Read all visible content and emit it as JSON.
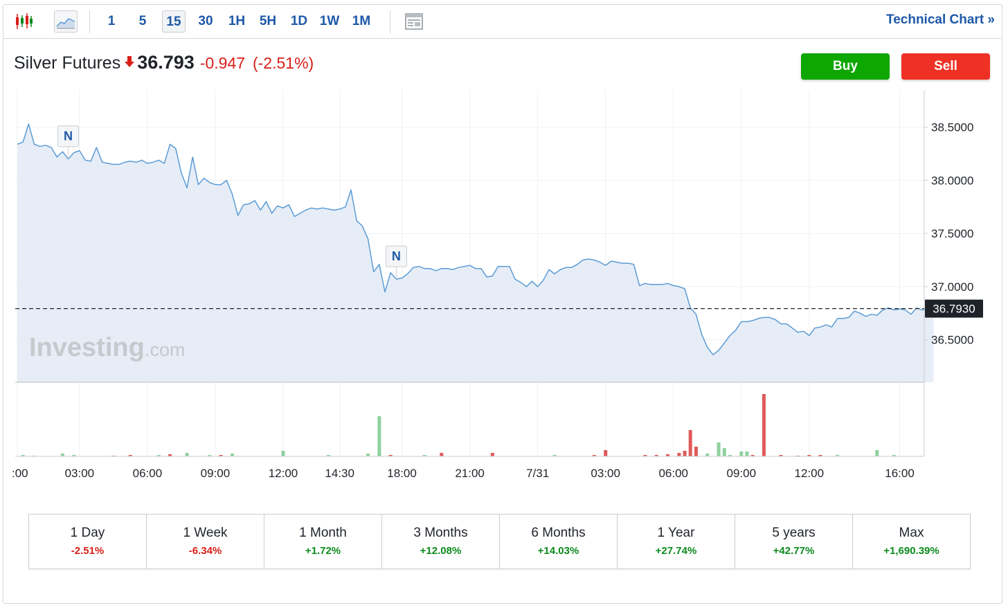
{
  "toolbar": {
    "timeframes": [
      "1",
      "5",
      "15",
      "30",
      "1H",
      "5H",
      "1D",
      "1W",
      "1M"
    ],
    "active_timeframe": "15",
    "technical_chart_label": "Technical Chart »"
  },
  "header": {
    "instrument": "Silver Futures",
    "price": "36.793",
    "change": "-0.947",
    "change_pct": "(-2.51%)",
    "direction_icon": "arrow-down-icon"
  },
  "actions": {
    "buy_label": "Buy",
    "sell_label": "Sell"
  },
  "watermark": {
    "brand": "Investing",
    "suffix": ".com"
  },
  "periods": [
    {
      "label": "1 Day",
      "value": "-2.51%"
    },
    {
      "label": "1 Week",
      "value": "-6.34%"
    },
    {
      "label": "1 Month",
      "value": "+1.72%"
    },
    {
      "label": "3 Months",
      "value": "+12.08%"
    },
    {
      "label": "6 Months",
      "value": "+14.03%"
    },
    {
      "label": "1 Year",
      "value": "+27.74%"
    },
    {
      "label": "5 years",
      "value": "+42.77%"
    },
    {
      "label": "Max",
      "value": "+1,690.39%"
    }
  ],
  "colors": {
    "line": "#5b9bd5",
    "area": "#e6edf6",
    "volume_up": "#8fd19e",
    "volume_down": "#e05a5a",
    "positive": "#0b8a1d",
    "negative": "#d91e18",
    "buy": "#0ea600",
    "sell": "#ee3124"
  },
  "chart_data": {
    "type": "area",
    "grid": true,
    "xlabel": "",
    "ylabel": "",
    "ylim": [
      36.1,
      38.85
    ],
    "yticks": [
      "38.5000",
      "38.0000",
      "37.5000",
      "37.0000",
      "36.5000"
    ],
    "ytick_values": [
      38.5,
      38.0,
      37.5,
      37.0,
      36.5
    ],
    "current_price_label": "36.7930",
    "current_price": 36.793,
    "xticks": [
      {
        "label": ":00",
        "i": 0
      },
      {
        "label": "03:00",
        "i": 11
      },
      {
        "label": "06:00",
        "i": 23
      },
      {
        "label": "09:00",
        "i": 35
      },
      {
        "label": "12:00",
        "i": 47
      },
      {
        "label": "14:30",
        "i": 57
      },
      {
        "label": "18:00",
        "i": 68
      },
      {
        "label": "21:00",
        "i": 80
      },
      {
        "label": "7/31",
        "i": 92
      },
      {
        "label": "03:00",
        "i": 104
      },
      {
        "label": "06:00",
        "i": 116
      },
      {
        "label": "09:00",
        "i": 128
      },
      {
        "label": "12:00",
        "i": 140
      },
      {
        "label": "16:00",
        "i": 156
      }
    ],
    "news_markers": [
      {
        "label": "N",
        "i": 9
      },
      {
        "label": "N",
        "i": 67
      }
    ],
    "series": [
      {
        "values": [
          38.34,
          38.36,
          38.53,
          38.34,
          38.32,
          38.33,
          38.31,
          38.22,
          38.27,
          38.2,
          38.26,
          38.28,
          38.19,
          38.18,
          38.31,
          38.17,
          38.16,
          38.15,
          38.15,
          38.17,
          38.18,
          38.17,
          38.19,
          38.16,
          38.17,
          38.19,
          38.16,
          38.34,
          38.3,
          38.07,
          37.93,
          38.22,
          37.96,
          38.02,
          37.98,
          37.96,
          37.96,
          38.0,
          37.87,
          37.67,
          37.77,
          37.78,
          37.81,
          37.72,
          37.8,
          37.69,
          37.76,
          37.74,
          37.77,
          37.66,
          37.69,
          37.72,
          37.74,
          37.73,
          37.74,
          37.73,
          37.72,
          37.73,
          37.75,
          37.91,
          37.62,
          37.57,
          37.45,
          37.14,
          37.21,
          36.95,
          37.13,
          37.07,
          37.08,
          37.12,
          37.18,
          37.19,
          37.17,
          37.17,
          37.15,
          37.17,
          37.17,
          37.16,
          37.18,
          37.19,
          37.2,
          37.17,
          37.17,
          37.09,
          37.1,
          37.19,
          37.19,
          37.19,
          37.07,
          37.04,
          37.0,
          37.05,
          37.0,
          37.06,
          37.16,
          37.12,
          37.16,
          37.18,
          37.18,
          37.21,
          37.25,
          37.26,
          37.25,
          37.23,
          37.2,
          37.24,
          37.23,
          37.22,
          37.22,
          37.21,
          37.01,
          37.03,
          37.02,
          37.02,
          37.02,
          37.03,
          37.01,
          37.0,
          36.98,
          36.8,
          36.74,
          36.55,
          36.43,
          36.36,
          36.4,
          36.47,
          36.54,
          36.59,
          36.67,
          36.67,
          36.68,
          36.7,
          36.71,
          36.71,
          36.69,
          36.65,
          36.65,
          36.61,
          36.57,
          36.58,
          36.54,
          36.61,
          36.62,
          36.64,
          36.62,
          36.7,
          36.7,
          36.71,
          36.77,
          36.75,
          36.72,
          36.74,
          36.73,
          36.78,
          36.8,
          36.78,
          36.79,
          36.78,
          36.74,
          36.8,
          36.78,
          36.79,
          36.79
        ]
      }
    ],
    "volume": [
      [
        1,
        "up",
        2
      ],
      [
        3,
        "up",
        1
      ],
      [
        8,
        "up",
        4
      ],
      [
        10,
        "up",
        2
      ],
      [
        17,
        "down",
        1
      ],
      [
        20,
        "down",
        2
      ],
      [
        25,
        "up",
        2
      ],
      [
        27,
        "down",
        3
      ],
      [
        30,
        "up",
        5
      ],
      [
        34,
        "up",
        2
      ],
      [
        36,
        "down",
        2
      ],
      [
        38,
        "up",
        4
      ],
      [
        47,
        "up",
        8
      ],
      [
        55,
        "up",
        2
      ],
      [
        62,
        "up",
        4
      ],
      [
        64,
        "up",
        58
      ],
      [
        66,
        "down",
        2
      ],
      [
        72,
        "up",
        2
      ],
      [
        75,
        "down",
        5
      ],
      [
        84,
        "down",
        5
      ],
      [
        95,
        "up",
        2
      ],
      [
        102,
        "down",
        2
      ],
      [
        104,
        "down",
        9
      ],
      [
        111,
        "down",
        2
      ],
      [
        113,
        "down",
        2
      ],
      [
        115,
        "down",
        3
      ],
      [
        117,
        "down",
        5
      ],
      [
        118,
        "down",
        8
      ],
      [
        119,
        "down",
        38
      ],
      [
        120,
        "down",
        14
      ],
      [
        122,
        "up",
        4
      ],
      [
        124,
        "up",
        20
      ],
      [
        125,
        "up",
        12
      ],
      [
        126,
        "up",
        2
      ],
      [
        128,
        "up",
        7
      ],
      [
        129,
        "up",
        7
      ],
      [
        130,
        "down",
        2
      ],
      [
        132,
        "down",
        90
      ],
      [
        135,
        "down",
        2
      ],
      [
        138,
        "down",
        1
      ],
      [
        140,
        "down",
        2
      ],
      [
        142,
        "down",
        2
      ],
      [
        145,
        "up",
        2
      ],
      [
        152,
        "up",
        9
      ],
      [
        155,
        "up",
        2
      ]
    ]
  }
}
